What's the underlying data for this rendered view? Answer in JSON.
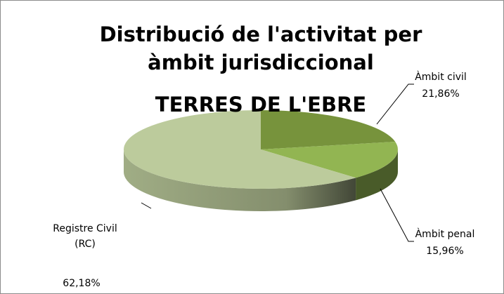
{
  "chart_data": {
    "type": "pie3d",
    "title": "Distribució de l'activitat per àmbit jurisdiccional",
    "subtitle": "TERRES DE L'EBRE",
    "categories": [
      "Àmbit civil",
      "Àmbit penal",
      "Registre Civil (RC)"
    ],
    "values": [
      21.86,
      15.96,
      62.18
    ],
    "value_labels": [
      "21,86%",
      "15,96%",
      "62,18%"
    ],
    "colors": [
      "#77933c",
      "#92b552",
      "#bccb9c"
    ]
  }
}
